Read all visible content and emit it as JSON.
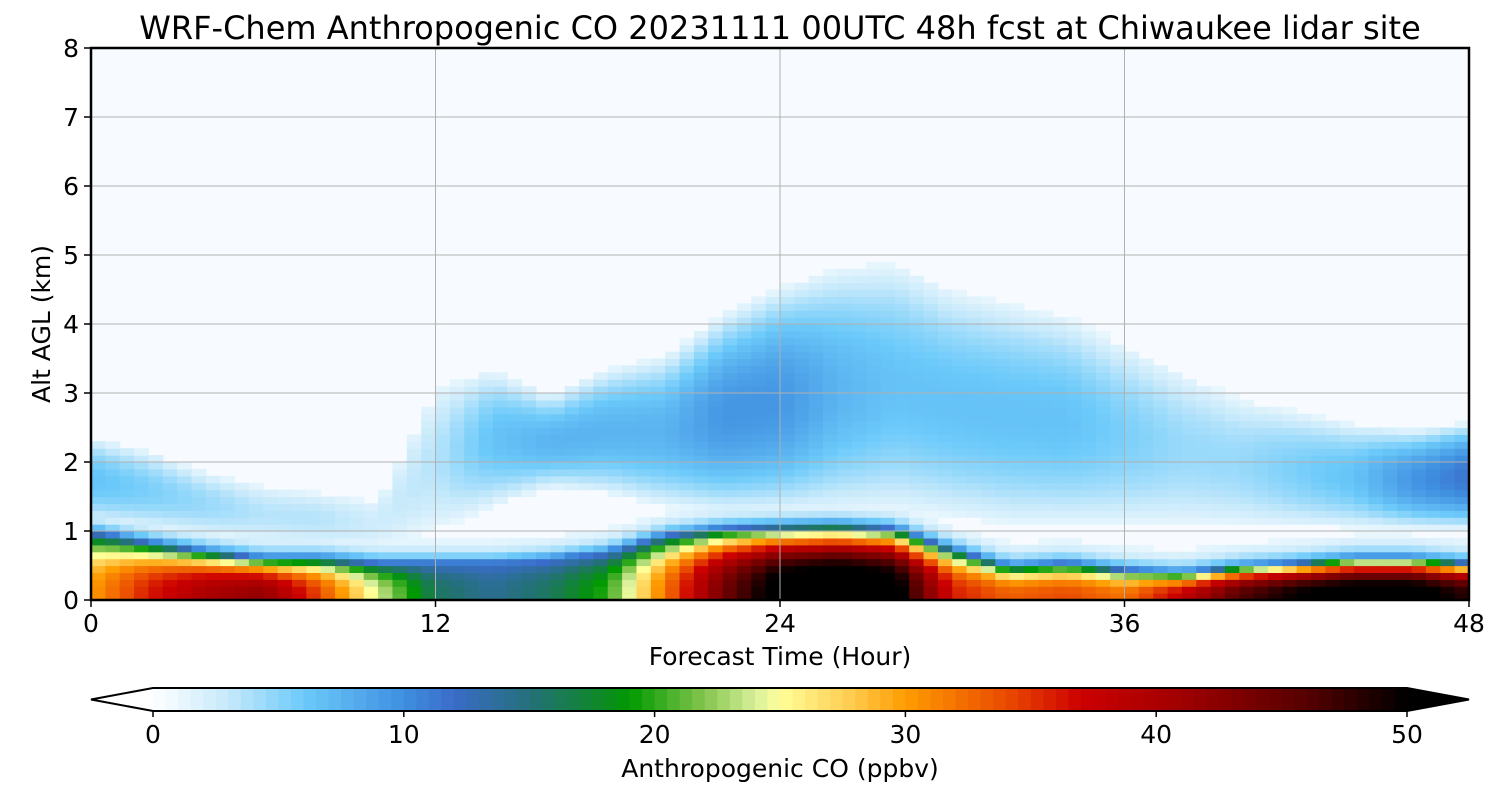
{
  "chart_data": {
    "type": "heatmap",
    "title": "WRF-Chem Anthropogenic CO  20231111 00UTC 48h fcst at Chiwaukee lidar site",
    "xlabel": "Forecast Time (Hour)",
    "ylabel": "Alt AGL (km)",
    "xlim": [
      0,
      48
    ],
    "ylim": [
      0,
      8
    ],
    "xticks": [
      0,
      12,
      24,
      36,
      48
    ],
    "yticks": [
      0,
      1,
      2,
      3,
      4,
      5,
      6,
      7,
      8
    ],
    "grid": true,
    "colorbar": {
      "label": "Anthropogenic CO  (ppbv)",
      "min": 0,
      "max": 50,
      "ticks": [
        0,
        10,
        20,
        30,
        40,
        50
      ],
      "extend": "both",
      "colormap_stops": [
        {
          "value": 0,
          "color": "#ffffff"
        },
        {
          "value": 3,
          "color": "#c6e9fb"
        },
        {
          "value": 6,
          "color": "#6ccafa"
        },
        {
          "value": 10,
          "color": "#3f8fe0"
        },
        {
          "value": 12,
          "color": "#3a6cc9"
        },
        {
          "value": 15,
          "color": "#24707a"
        },
        {
          "value": 18,
          "color": "#0c8a22"
        },
        {
          "value": 19,
          "color": "#009a00"
        },
        {
          "value": 22,
          "color": "#85c54e"
        },
        {
          "value": 24,
          "color": "#d7ef9b"
        },
        {
          "value": 25,
          "color": "#ffff99"
        },
        {
          "value": 28,
          "color": "#ffc84a"
        },
        {
          "value": 30,
          "color": "#ff9c00"
        },
        {
          "value": 34,
          "color": "#ea4b00"
        },
        {
          "value": 37,
          "color": "#cc0000"
        },
        {
          "value": 41,
          "color": "#a00000"
        },
        {
          "value": 46,
          "color": "#550000"
        },
        {
          "value": 50,
          "color": "#000000"
        }
      ]
    },
    "field": {
      "x_hours": [
        0,
        2,
        4,
        6,
        8,
        10,
        12,
        14,
        16,
        18,
        20,
        22,
        24,
        26,
        28,
        30,
        32,
        34,
        36,
        38,
        40,
        42,
        44,
        46,
        48
      ],
      "column_profiles_note": "per column: surface CO (ppbv), top of boundary layer (km), upper plume base/top (km), upper plume peak CO (ppbv)",
      "surface_co": [
        30,
        36,
        40,
        42,
        34,
        24,
        16,
        14,
        16,
        20,
        32,
        44,
        52,
        54,
        52,
        36,
        33,
        34,
        32,
        38,
        46,
        50,
        52,
        52,
        48
      ],
      "pbl_top_km": [
        1.0,
        0.85,
        0.72,
        0.62,
        0.62,
        0.55,
        0.55,
        0.55,
        0.6,
        0.7,
        0.95,
        1.05,
        1.08,
        1.1,
        1.05,
        0.75,
        0.5,
        0.55,
        0.45,
        0.4,
        0.5,
        0.55,
        0.62,
        0.62,
        0.55
      ],
      "upper_base_km": [
        1.1,
        1.0,
        0.9,
        0.8,
        0.75,
        0.7,
        0.9,
        1.3,
        1.6,
        1.5,
        1.3,
        1.2,
        1.2,
        1.2,
        1.2,
        1.1,
        1.0,
        1.0,
        1.0,
        1.0,
        1.0,
        1.0,
        1.0,
        1.0,
        1.0
      ],
      "upper_top_km": [
        2.4,
        2.2,
        1.9,
        1.7,
        1.6,
        1.5,
        3.2,
        3.4,
        3.0,
        3.4,
        3.6,
        4.2,
        4.6,
        4.9,
        5.0,
        4.6,
        4.4,
        4.2,
        3.8,
        3.4,
        3.0,
        2.8,
        2.6,
        2.5,
        2.6
      ],
      "upper_peak_co": [
        6,
        5,
        4,
        3,
        3,
        2,
        3,
        6,
        7,
        7,
        7,
        9,
        9,
        7,
        6,
        6,
        6,
        6,
        5,
        4,
        4,
        5,
        6,
        9,
        11
      ]
    }
  }
}
